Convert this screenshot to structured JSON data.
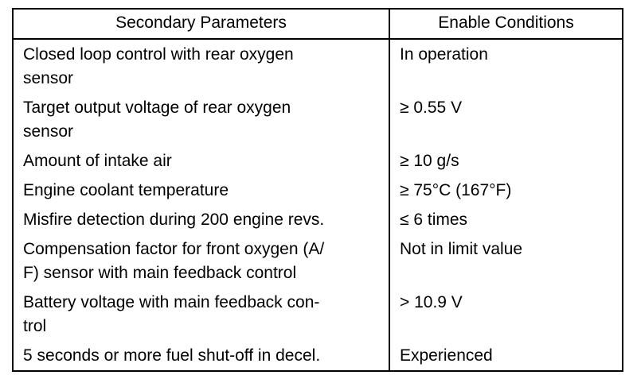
{
  "table": {
    "header": [
      "Secondary Parameters",
      "Enable Conditions"
    ],
    "rows": [
      [
        [
          "Closed loop control with rear oxygen",
          "sensor"
        ],
        [
          "In operation"
        ]
      ],
      [
        [
          "Target output voltage of rear oxygen",
          "sensor"
        ],
        [
          "≥ 0.55 V"
        ]
      ],
      [
        [
          "Amount of intake air"
        ],
        [
          "≥ 10 g/s"
        ]
      ],
      [
        [
          "Engine coolant temperature"
        ],
        [
          "≥ 75°C (167°F)"
        ]
      ],
      [
        [
          "Misfire detection during 200 engine revs."
        ],
        [
          "≤ 6 times"
        ]
      ],
      [
        [
          "Compensation factor for front oxygen (A/",
          "F) sensor with main feedback control"
        ],
        [
          "Not in limit value"
        ]
      ],
      [
        [
          "Battery voltage with main feedback con-",
          "trol"
        ],
        [
          "> 10.9 V"
        ]
      ],
      [
        [
          "5 seconds or more fuel shut-off in decel."
        ],
        [
          "Experienced"
        ]
      ]
    ]
  }
}
